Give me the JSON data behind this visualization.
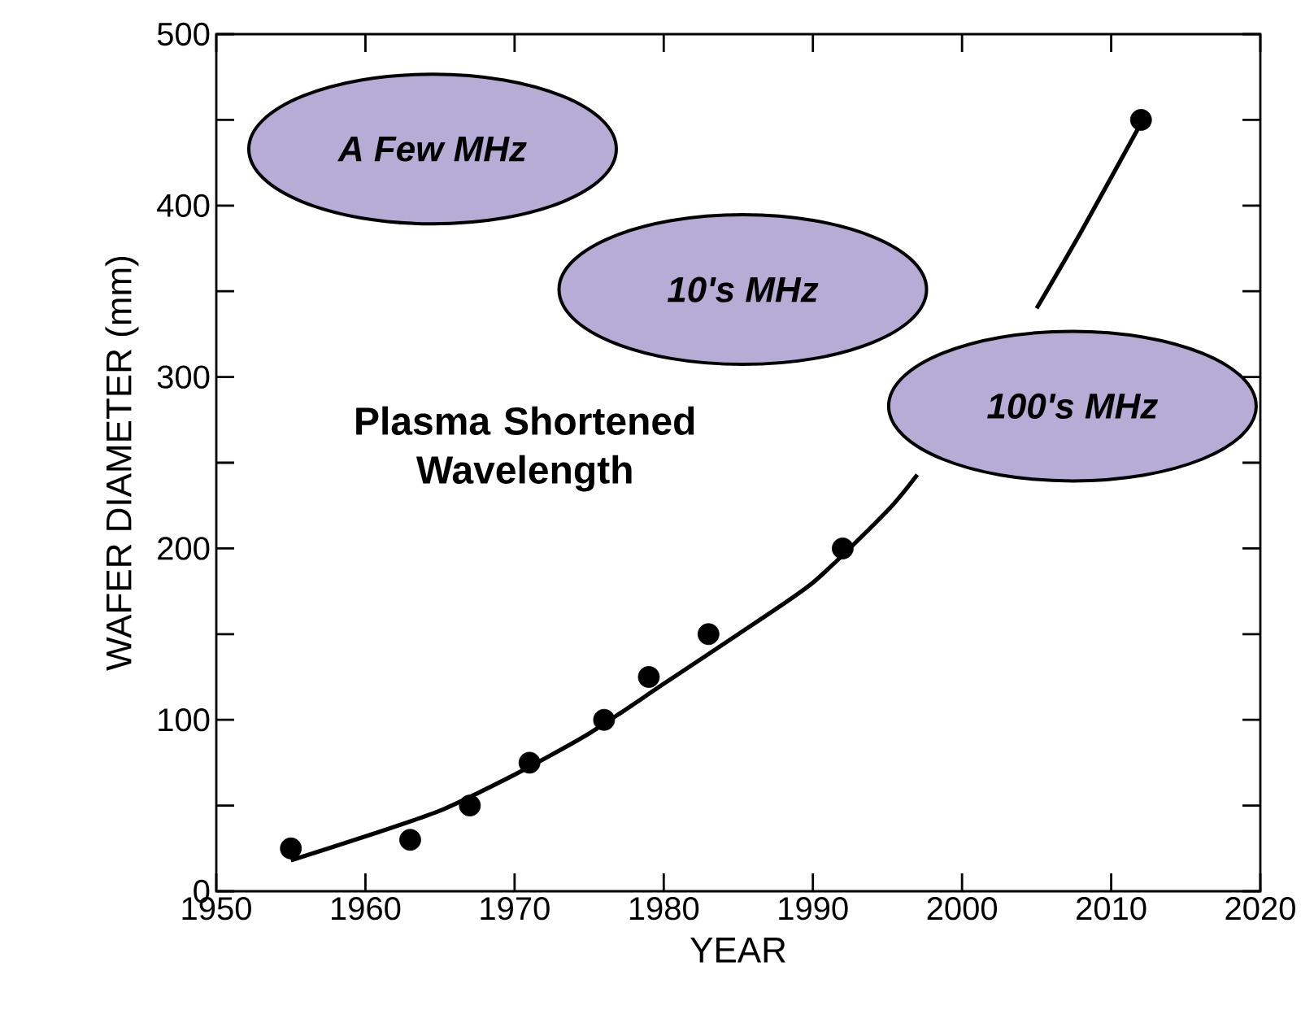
{
  "chart_data": {
    "type": "scatter",
    "xlabel": "YEAR",
    "ylabel": "WAFER DIAMETER (mm)",
    "xlim": [
      1950,
      2020
    ],
    "ylim": [
      0,
      500
    ],
    "xticks": [
      1950,
      1960,
      1970,
      1980,
      1990,
      2000,
      2010,
      2020
    ],
    "yticks": [
      0,
      100,
      200,
      300,
      400,
      500
    ],
    "grid": false,
    "series": [
      {
        "marker": "circle",
        "color": "#000000",
        "x": [
          1955,
          1963,
          1967,
          1971,
          1976,
          1979,
          1983,
          1992,
          2012
        ],
        "values": [
          25,
          30,
          50,
          75,
          100,
          125,
          150,
          200,
          450
        ]
      },
      {
        "type": "line",
        "marker": "none",
        "line_style": "solid",
        "color": "#000000",
        "x": [
          1955,
          1960,
          1965,
          1970,
          1975,
          1980,
          1985,
          1990,
          1995,
          1997,
          2001,
          2005,
          2008,
          2012
        ],
        "values": [
          18,
          32,
          47,
          68,
          92,
          121,
          150,
          180,
          222,
          243,
          null,
          340,
          385,
          448
        ]
      }
    ],
    "annotations": [
      "A Few MHz",
      "10's MHz",
      "100's MHz",
      "Plasma Shortened Wavelength"
    ]
  }
}
